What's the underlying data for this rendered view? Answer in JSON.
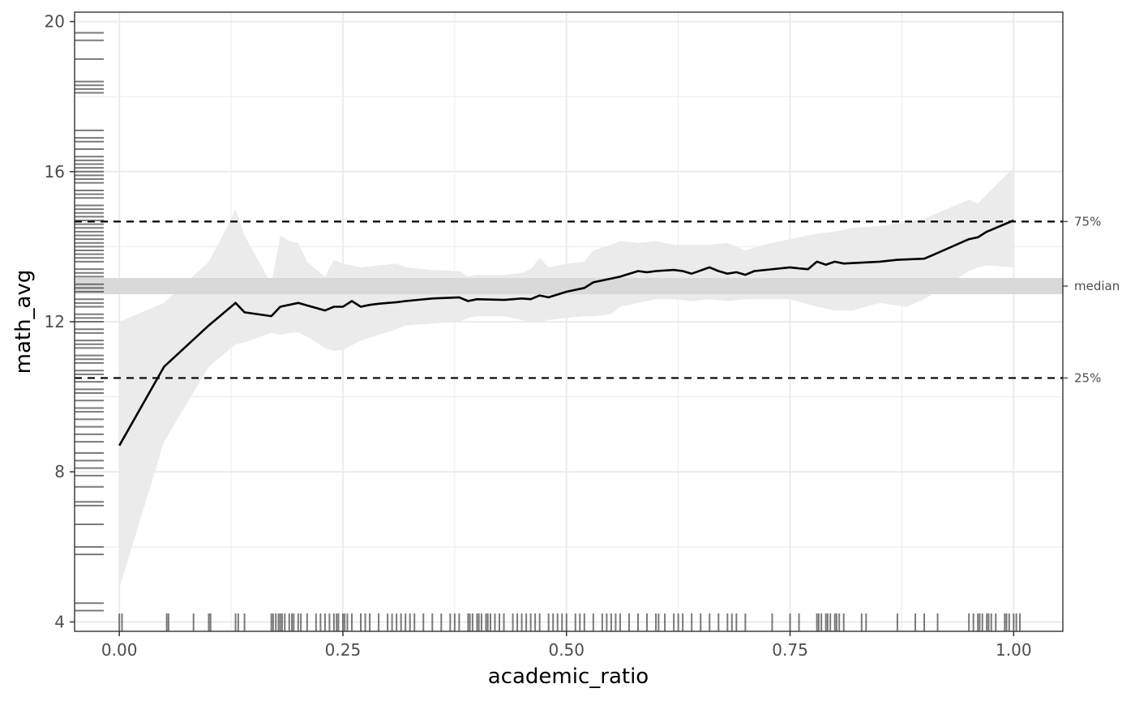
{
  "chart_data": {
    "type": "line",
    "title": "",
    "xlabel": "academic_ratio",
    "ylabel": "math_avg",
    "xlim": [
      -0.05,
      1.055
    ],
    "ylim": [
      3.75,
      20.25
    ],
    "x_ticks": [
      0,
      0.25,
      0.5,
      0.75,
      1
    ],
    "x_tick_labels": [
      "0.00",
      "0.25",
      "0.50",
      "0.75",
      "1.00"
    ],
    "y_ticks": [
      4,
      8,
      12,
      16,
      20
    ],
    "y_tick_labels": [
      "4",
      "8",
      "12",
      "16",
      "20"
    ],
    "grid": true,
    "colors": {
      "line": "#000000",
      "band": "#ebebeb",
      "median_band": "#d9d9d9",
      "rug": "#333333",
      "grid": "#ebebeb",
      "frame": "#333333"
    },
    "series": [
      {
        "x": [
          0,
          0.05,
          0.1,
          0.13,
          0.14,
          0.17,
          0.18,
          0.2,
          0.23,
          0.24,
          0.25,
          0.26,
          0.27,
          0.28,
          0.29,
          0.3,
          0.31,
          0.32,
          0.35,
          0.38,
          0.39,
          0.4,
          0.43,
          0.45,
          0.46,
          0.47,
          0.48,
          0.5,
          0.51,
          0.52,
          0.53,
          0.56,
          0.58,
          0.59,
          0.6,
          0.62,
          0.63,
          0.64,
          0.66,
          0.67,
          0.68,
          0.69,
          0.7,
          0.71,
          0.75,
          0.76,
          0.77,
          0.78,
          0.79,
          0.8,
          0.81,
          0.85,
          0.87,
          0.9,
          0.91,
          0.95,
          0.96,
          0.97,
          1.0
        ],
        "y": [
          8.7,
          10.8,
          11.9,
          12.5,
          12.25,
          12.15,
          12.4,
          12.5,
          12.3,
          12.4,
          12.4,
          12.55,
          12.4,
          12.45,
          12.48,
          12.5,
          12.52,
          12.55,
          12.62,
          12.65,
          12.55,
          12.6,
          12.58,
          12.62,
          12.6,
          12.7,
          12.65,
          12.8,
          12.85,
          12.9,
          13.05,
          13.2,
          13.35,
          13.32,
          13.35,
          13.38,
          13.35,
          13.28,
          13.45,
          13.35,
          13.28,
          13.32,
          13.25,
          13.35,
          13.45,
          13.42,
          13.4,
          13.6,
          13.52,
          13.6,
          13.55,
          13.6,
          13.65,
          13.68,
          13.78,
          14.2,
          14.25,
          14.4,
          14.7
        ]
      }
    ],
    "confidence_band": {
      "x": [
        0,
        0.05,
        0.1,
        0.12,
        0.13,
        0.14,
        0.17,
        0.18,
        0.19,
        0.2,
        0.21,
        0.23,
        0.24,
        0.25,
        0.27,
        0.29,
        0.31,
        0.32,
        0.35,
        0.38,
        0.39,
        0.4,
        0.43,
        0.45,
        0.46,
        0.47,
        0.48,
        0.5,
        0.52,
        0.53,
        0.55,
        0.56,
        0.58,
        0.6,
        0.62,
        0.64,
        0.66,
        0.68,
        0.7,
        0.72,
        0.75,
        0.78,
        0.8,
        0.82,
        0.85,
        0.88,
        0.9,
        0.95,
        0.96,
        0.97,
        1.0
      ],
      "upper": [
        12,
        12.5,
        13.6,
        14.5,
        15,
        14.3,
        13,
        14.3,
        14.15,
        14.1,
        13.6,
        13.2,
        13.65,
        13.55,
        13.45,
        13.5,
        13.55,
        13.45,
        13.38,
        13.35,
        13.2,
        13.25,
        13.25,
        13.3,
        13.4,
        13.7,
        13.45,
        13.55,
        13.6,
        13.9,
        14.05,
        14.15,
        14.1,
        14.15,
        14.05,
        14.05,
        14.05,
        14.1,
        13.9,
        14.05,
        14.2,
        14.35,
        14.4,
        14.5,
        14.55,
        14.65,
        14.75,
        15.25,
        15.15,
        15.4,
        16.1
      ],
      "lower": [
        4.9,
        8.8,
        10.8,
        11.2,
        11.4,
        11.45,
        11.7,
        11.65,
        11.7,
        11.72,
        11.6,
        11.3,
        11.22,
        11.25,
        11.5,
        11.65,
        11.8,
        11.9,
        11.95,
        12.0,
        12.1,
        12.15,
        12.15,
        12.05,
        12.0,
        11.98,
        12.05,
        12.1,
        12.15,
        12.15,
        12.2,
        12.4,
        12.5,
        12.6,
        12.6,
        12.55,
        12.6,
        12.55,
        12.6,
        12.6,
        12.6,
        12.4,
        12.3,
        12.3,
        12.5,
        12.4,
        12.6,
        13.35,
        13.45,
        13.5,
        13.45
      ]
    },
    "reference_lines": [
      {
        "label": "75%",
        "value": 14.67,
        "style": "dashed"
      },
      {
        "label": "median",
        "value": 12.95,
        "style": "band"
      },
      {
        "label": "25%",
        "value": 10.5,
        "style": "dashed"
      }
    ],
    "rug_x": [
      0,
      0.003,
      0.053,
      0.055,
      0.083,
      0.1,
      0.102,
      0.13,
      0.133,
      0.14,
      0.17,
      0.172,
      0.175,
      0.178,
      0.18,
      0.182,
      0.185,
      0.19,
      0.193,
      0.195,
      0.2,
      0.203,
      0.21,
      0.22,
      0.225,
      0.23,
      0.235,
      0.24,
      0.243,
      0.245,
      0.25,
      0.252,
      0.255,
      0.26,
      0.27,
      0.275,
      0.28,
      0.29,
      0.3,
      0.305,
      0.31,
      0.315,
      0.32,
      0.325,
      0.33,
      0.34,
      0.35,
      0.36,
      0.37,
      0.375,
      0.38,
      0.39,
      0.392,
      0.395,
      0.4,
      0.402,
      0.405,
      0.41,
      0.412,
      0.415,
      0.42,
      0.425,
      0.43,
      0.44,
      0.445,
      0.45,
      0.455,
      0.46,
      0.465,
      0.47,
      0.48,
      0.485,
      0.49,
      0.495,
      0.5,
      0.51,
      0.515,
      0.52,
      0.53,
      0.54,
      0.545,
      0.55,
      0.555,
      0.56,
      0.57,
      0.58,
      0.59,
      0.6,
      0.603,
      0.61,
      0.62,
      0.625,
      0.63,
      0.64,
      0.65,
      0.66,
      0.67,
      0.68,
      0.685,
      0.69,
      0.7,
      0.73,
      0.75,
      0.76,
      0.78,
      0.782,
      0.785,
      0.79,
      0.792,
      0.795,
      0.8,
      0.802,
      0.805,
      0.81,
      0.83,
      0.835,
      0.87,
      0.89,
      0.9,
      0.915,
      0.95,
      0.955,
      0.96,
      0.962,
      0.965,
      0.97,
      0.972,
      0.975,
      0.98,
      0.99,
      0.992,
      0.995,
      1.0,
      1.003,
      1.007
    ],
    "rug_y": [
      4.3,
      4.5,
      5.8,
      6.0,
      6.6,
      7.1,
      7.2,
      7.6,
      7.9,
      8.1,
      8.3,
      8.5,
      8.8,
      9.0,
      9.2,
      9.4,
      9.6,
      9.7,
      9.9,
      10.1,
      10.2,
      10.4,
      10.6,
      10.7,
      10.9,
      11.0,
      11.1,
      11.3,
      11.4,
      11.5,
      11.7,
      11.8,
      12.0,
      12.1,
      12.2,
      12.4,
      12.5,
      12.6,
      12.8,
      12.9,
      13.0,
      13.2,
      13.3,
      13.4,
      13.6,
      13.7,
      13.8,
      13.9,
      14.0,
      14.1,
      14.2,
      14.3,
      14.4,
      14.5,
      14.6,
      14.7,
      14.8,
      14.9,
      15.0,
      15.1,
      15.3,
      15.4,
      15.5,
      15.7,
      15.8,
      15.9,
      16.0,
      16.1,
      16.2,
      16.3,
      16.4,
      16.6,
      16.8,
      16.9,
      17.1,
      18.1,
      18.2,
      18.3,
      18.4,
      19.0,
      19.5,
      19.7
    ]
  }
}
